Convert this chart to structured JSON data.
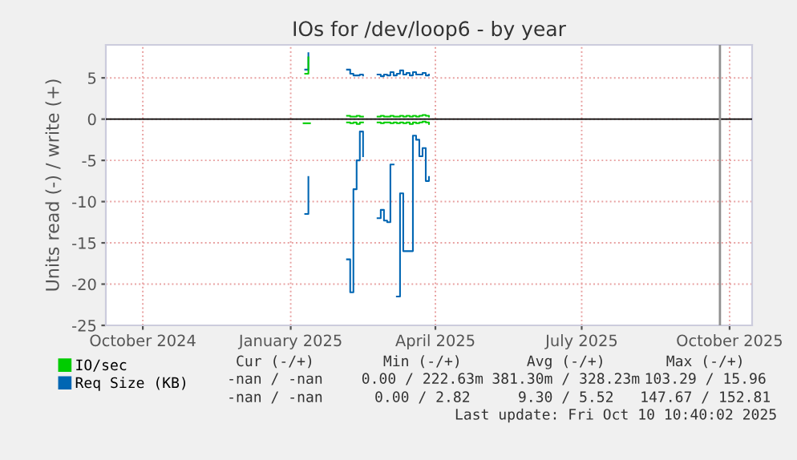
{
  "chart_data": {
    "type": "step",
    "title": "IOs for /dev/loop6 - by year",
    "ylabel": "Units read (-) / write (+)",
    "series": [
      {
        "name": "IO/sec",
        "color": "#00cc00",
        "x": [
          "2025-01-25",
          "2025-01-27"
        ],
        "values": [
          5.5,
          7.5
        ]
      },
      {
        "color": "#00cc00",
        "x": [
          "2025-02-20",
          "2025-02-22",
          "2025-02-24",
          "2025-02-26",
          "2025-02-28",
          "2025-03-02"
        ],
        "values": [
          0.4,
          0.3,
          0.3,
          0.4,
          0.3,
          0.3
        ]
      },
      {
        "color": "#00cc00",
        "x": [
          "2025-03-11",
          "2025-03-13",
          "2025-03-15",
          "2025-03-17",
          "2025-03-19",
          "2025-03-21",
          "2025-03-23",
          "2025-03-25",
          "2025-03-27",
          "2025-03-29",
          "2025-03-31",
          "2025-04-02",
          "2025-04-04",
          "2025-04-06",
          "2025-04-08",
          "2025-04-10",
          "2025-04-12"
        ],
        "values": [
          0.3,
          0.4,
          0.3,
          0.3,
          0.4,
          0.3,
          0.3,
          0.4,
          0.3,
          0.4,
          0.3,
          0.4,
          0.3,
          0.4,
          0.5,
          0.4,
          0.3
        ]
      },
      {
        "color": "#00cc00",
        "x": [
          "2025-01-24",
          "2025-01-28"
        ],
        "values": [
          -0.5,
          -0.5
        ]
      },
      {
        "color": "#00cc00",
        "x": [
          "2025-02-20",
          "2025-02-22",
          "2025-02-24",
          "2025-02-26",
          "2025-02-28",
          "2025-03-02"
        ],
        "values": [
          -0.4,
          -0.5,
          -0.4,
          -0.6,
          -0.4,
          -0.4
        ]
      },
      {
        "color": "#00cc00",
        "x": [
          "2025-03-11",
          "2025-03-13",
          "2025-03-15",
          "2025-03-17",
          "2025-03-19",
          "2025-03-21",
          "2025-03-23",
          "2025-03-25",
          "2025-03-27",
          "2025-03-29",
          "2025-03-31",
          "2025-04-02",
          "2025-04-04",
          "2025-04-06",
          "2025-04-08",
          "2025-04-10",
          "2025-04-12"
        ],
        "values": [
          -0.4,
          -0.5,
          -0.4,
          -0.4,
          -0.5,
          -0.4,
          -0.5,
          -0.4,
          -0.5,
          -0.4,
          -0.6,
          -0.4,
          -0.5,
          -0.4,
          -0.3,
          -0.4,
          -0.6
        ]
      },
      {
        "name": "Req Size (KB)",
        "color": "#0066b3",
        "x": [
          "2025-01-25",
          "2025-01-27"
        ],
        "values": [
          6,
          8
        ]
      },
      {
        "color": "#0066b3",
        "x": [
          "2025-02-20",
          "2025-02-22",
          "2025-02-24",
          "2025-02-26",
          "2025-02-28",
          "2025-03-02"
        ],
        "values": [
          6,
          5.5,
          5.3,
          5.3,
          5.4,
          5.3
        ]
      },
      {
        "color": "#0066b3",
        "x": [
          "2025-03-11",
          "2025-03-13",
          "2025-03-15",
          "2025-03-17",
          "2025-03-19",
          "2025-03-21",
          "2025-03-23",
          "2025-03-25",
          "2025-03-27",
          "2025-03-29",
          "2025-03-31",
          "2025-04-02",
          "2025-04-04",
          "2025-04-06",
          "2025-04-08",
          "2025-04-10",
          "2025-04-12"
        ],
        "values": [
          5.4,
          5.2,
          5.4,
          5.3,
          5.7,
          5.3,
          5.5,
          5.9,
          5.4,
          5.6,
          5.3,
          5.7,
          5.4,
          5.4,
          5.6,
          5.3,
          5.4
        ]
      },
      {
        "color": "#0066b3",
        "x": [
          "2025-01-25",
          "2025-01-27"
        ],
        "values": [
          -11.5,
          -7
        ]
      },
      {
        "color": "#0066b3",
        "x": [
          "2025-02-20",
          "2025-02-22",
          "2025-02-24",
          "2025-02-26",
          "2025-02-28",
          "2025-03-02"
        ],
        "values": [
          -17,
          -21,
          -8.5,
          -5,
          -1.5,
          -4.5
        ]
      },
      {
        "color": "#0066b3",
        "x": [
          "2025-03-11",
          "2025-03-13",
          "2025-03-15",
          "2025-03-17",
          "2025-03-19",
          "2025-03-21",
          "2025-03-23",
          "2025-03-25",
          "2025-03-27",
          "2025-03-29",
          "2025-03-31",
          "2025-04-02",
          "2025-04-04",
          "2025-04-06",
          "2025-04-08",
          "2025-04-10",
          "2025-04-12"
        ],
        "values": [
          -12,
          -11,
          -12.3,
          -12.5,
          -5.5,
          null,
          -21.5,
          -9,
          -16,
          -16,
          -16,
          -2,
          -2.5,
          -4.5,
          -3.5,
          -7.5,
          -7
        ]
      }
    ],
    "xlim": [
      "2024-09-23",
      "2025-10-30"
    ],
    "xticks": [
      {
        "value": "2024-10-16",
        "label": "October 2024"
      },
      {
        "value": "2025-01-16",
        "label": "January 2025"
      },
      {
        "value": "2025-04-16",
        "label": "April 2025"
      },
      {
        "value": "2025-07-16",
        "label": "July 2025"
      },
      {
        "value": "2025-10-16",
        "label": "October 2025"
      }
    ],
    "ylim": [
      -25,
      9
    ],
    "yticks": [
      -25,
      -20,
      -15,
      -10,
      -5,
      0,
      5
    ],
    "grid": true,
    "legend": "bottom",
    "ref_lines": [
      {
        "axis": "y",
        "value": 0,
        "color": "#000000"
      },
      {
        "axis": "x",
        "value": "2025-10-10",
        "color": "#909090"
      }
    ],
    "annotations": [
      "Cur (-/+)",
      "Min (-/+)",
      "Avg (-/+)",
      "Max (-/+)",
      "-nan / -nan",
      "0.00 / 222.63m",
      "381.30m / 328.23m",
      "103.29 / 15.96",
      "-nan / -nan",
      "0.00 / 2.82",
      "9.30 / 5.52",
      "147.67 / 152.81",
      "Last update: Fri Oct 10 10:40:02 2025"
    ]
  }
}
